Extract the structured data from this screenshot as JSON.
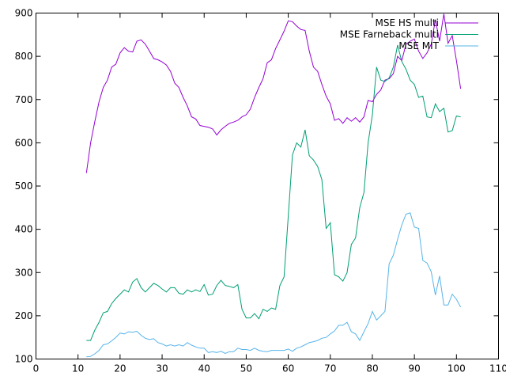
{
  "chart_data": {
    "type": "line",
    "xlim": [
      0,
      110
    ],
    "ylim": [
      100,
      900
    ],
    "xticks": [
      0,
      10,
      20,
      30,
      40,
      50,
      60,
      70,
      80,
      90,
      100,
      110
    ],
    "yticks": [
      100,
      200,
      300,
      400,
      500,
      600,
      700,
      800,
      900
    ],
    "grid": false,
    "legend_position": "top-right",
    "series": [
      {
        "name": "MSE HS multi",
        "color": "#9400d3",
        "x": [
          12,
          13,
          14,
          15,
          16,
          17,
          18,
          19,
          20,
          21,
          22,
          23,
          24,
          25,
          26,
          27,
          28,
          29,
          30,
          31,
          32,
          33,
          34,
          35,
          36,
          37,
          38,
          39,
          40,
          41,
          42,
          43,
          44,
          45,
          46,
          47,
          48,
          49,
          50,
          51,
          52,
          53,
          54,
          55,
          56,
          57,
          58,
          59,
          60,
          61,
          62,
          63,
          64,
          65,
          66,
          67,
          68,
          69,
          70,
          71,
          72,
          73,
          74,
          75,
          76,
          77,
          78,
          79,
          80,
          81,
          82,
          83,
          84,
          85,
          86,
          87,
          88,
          89,
          90,
          91,
          92,
          93,
          94,
          95,
          96,
          97,
          98,
          99,
          100,
          101
        ],
        "y": [
          530,
          600,
          650,
          695,
          728,
          745,
          775,
          782,
          808,
          820,
          812,
          810,
          835,
          838,
          828,
          812,
          795,
          792,
          787,
          780,
          765,
          738,
          728,
          705,
          685,
          660,
          655,
          640,
          638,
          636,
          632,
          618,
          630,
          638,
          645,
          648,
          652,
          660,
          665,
          678,
          705,
          728,
          748,
          785,
          792,
          818,
          838,
          858,
          882,
          880,
          870,
          862,
          860,
          812,
          775,
          765,
          735,
          708,
          690,
          652,
          656,
          645,
          658,
          650,
          658,
          648,
          660,
          698,
          695,
          712,
          722,
          745,
          748,
          760,
          800,
          790,
          828,
          835,
          840,
          812,
          795,
          808,
          828,
          885,
          835,
          898,
          830,
          848,
          790,
          725
        ]
      },
      {
        "name": "MSE Farneback multi",
        "color": "#009e73",
        "x": [
          12,
          13,
          14,
          15,
          16,
          17,
          18,
          19,
          20,
          21,
          22,
          23,
          24,
          25,
          26,
          27,
          28,
          29,
          30,
          31,
          32,
          33,
          34,
          35,
          36,
          37,
          38,
          39,
          40,
          41,
          42,
          43,
          44,
          45,
          46,
          47,
          48,
          49,
          50,
          51,
          52,
          53,
          54,
          55,
          56,
          57,
          58,
          59,
          60,
          61,
          62,
          63,
          64,
          65,
          66,
          67,
          68,
          69,
          70,
          71,
          72,
          73,
          74,
          75,
          76,
          77,
          78,
          79,
          80,
          81,
          82,
          83,
          84,
          85,
          86,
          87,
          88,
          89,
          90,
          91,
          92,
          93,
          94,
          95,
          96,
          97,
          98,
          99,
          100,
          101
        ],
        "y": [
          143,
          143,
          167,
          185,
          207,
          210,
          228,
          240,
          250,
          260,
          255,
          278,
          286,
          265,
          255,
          265,
          275,
          270,
          262,
          255,
          265,
          265,
          252,
          250,
          260,
          255,
          260,
          256,
          272,
          248,
          250,
          270,
          282,
          270,
          268,
          265,
          272,
          215,
          195,
          195,
          205,
          193,
          215,
          210,
          218,
          215,
          270,
          290,
          430,
          572,
          600,
          590,
          630,
          570,
          560,
          545,
          515,
          402,
          415,
          295,
          290,
          280,
          300,
          365,
          380,
          450,
          485,
          600,
          665,
          775,
          745,
          742,
          750,
          775,
          826,
          788,
          770,
          745,
          735,
          705,
          708,
          660,
          658,
          690,
          672,
          680,
          625,
          628,
          662,
          660
        ]
      },
      {
        "name": "MSE MIT",
        "color": "#56b4e9",
        "x": [
          12,
          13,
          14,
          15,
          16,
          17,
          18,
          19,
          20,
          21,
          22,
          23,
          24,
          25,
          26,
          27,
          28,
          29,
          30,
          31,
          32,
          33,
          34,
          35,
          36,
          37,
          38,
          39,
          40,
          41,
          42,
          43,
          44,
          45,
          46,
          47,
          48,
          49,
          50,
          51,
          52,
          53,
          54,
          55,
          56,
          57,
          58,
          59,
          60,
          61,
          62,
          63,
          64,
          65,
          66,
          67,
          68,
          69,
          70,
          71,
          72,
          73,
          74,
          75,
          76,
          77,
          78,
          79,
          80,
          81,
          82,
          83,
          84,
          85,
          86,
          87,
          88,
          89,
          90,
          91,
          92,
          93,
          94,
          95,
          96,
          97,
          98,
          99,
          100,
          101
        ],
        "y": [
          105,
          106,
          112,
          120,
          133,
          135,
          142,
          150,
          160,
          158,
          163,
          162,
          164,
          155,
          148,
          145,
          147,
          138,
          135,
          130,
          133,
          130,
          133,
          130,
          138,
          132,
          128,
          125,
          125,
          115,
          117,
          115,
          118,
          113,
          117,
          117,
          125,
          122,
          122,
          120,
          125,
          120,
          118,
          117,
          120,
          120,
          120,
          120,
          123,
          118,
          125,
          128,
          133,
          138,
          140,
          143,
          148,
          150,
          158,
          165,
          178,
          178,
          185,
          163,
          158,
          143,
          163,
          182,
          210,
          190,
          200,
          210,
          320,
          340,
          377,
          410,
          435,
          438,
          405,
          402,
          328,
          322,
          302,
          248,
          292,
          225,
          225,
          250,
          238,
          220
        ]
      }
    ]
  }
}
